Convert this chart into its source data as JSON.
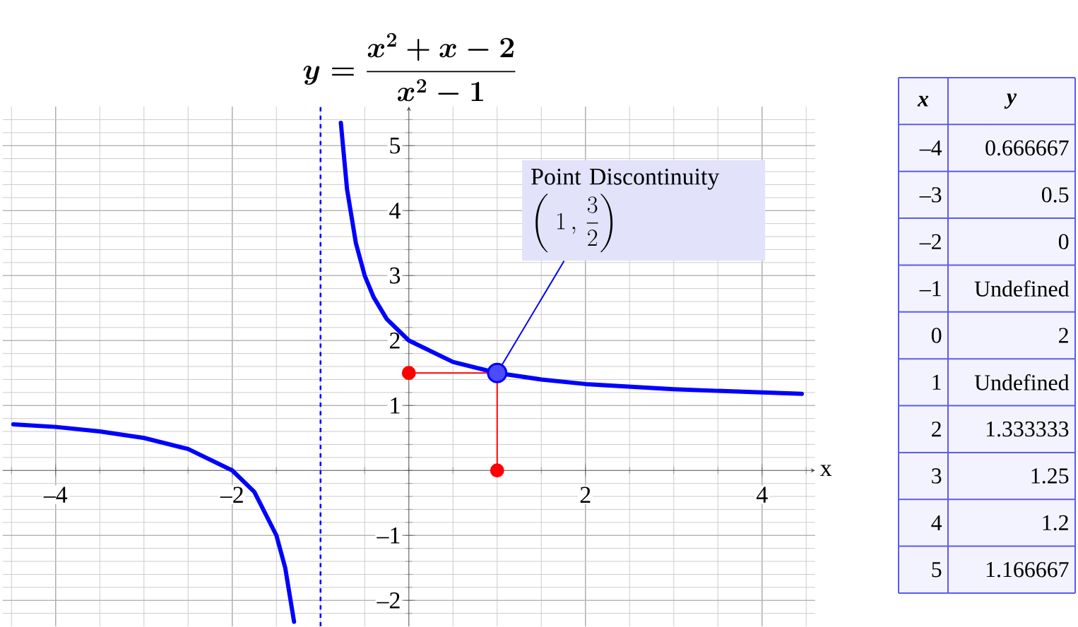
{
  "chart_data": {
    "type": "line",
    "title": "y = \\frac{x^2 + x - 2}{x^2 - 1}",
    "xlabel": "x",
    "xlim": [
      -4.6,
      4.6
    ],
    "ylim": [
      -2.4,
      5.6
    ],
    "xticks": [
      {
        "value": -4,
        "label": "–4"
      },
      {
        "value": -2,
        "label": "–2"
      },
      2,
      4
    ],
    "yticks": [
      {
        "value": -2,
        "label": "–2"
      },
      {
        "value": -1,
        "label": "–1"
      },
      1,
      2,
      3,
      4,
      5
    ],
    "grid": true,
    "series": [
      {
        "color": "#0000ff",
        "marker": "none",
        "x": [
          -4.48,
          -4,
          -3.5,
          -3,
          -2.5,
          -2,
          -1.75,
          -1.5,
          -1.4,
          -1.3
        ],
        "values": [
          0.71,
          0.67,
          0.6,
          0.5,
          0.33,
          0,
          -0.33,
          -1,
          -1.5,
          -2.33
        ]
      },
      {
        "color": "#0000ff",
        "marker": "none",
        "x": [
          -0.77,
          -0.7,
          -0.6,
          -0.5,
          -0.4,
          -0.25,
          0,
          0.5,
          1,
          1.5,
          2,
          3,
          4,
          4.45
        ],
        "values": [
          5.35,
          4.33,
          3.5,
          3,
          2.67,
          2.33,
          2,
          1.67,
          1.5,
          1.4,
          1.33,
          1.25,
          1.2,
          1.18
        ]
      },
      {
        "color": "#ff0000",
        "marker": "circle",
        "x": [
          0,
          1,
          1
        ],
        "values": [
          1.5,
          1.5,
          0
        ]
      },
      {
        "type": "scatter",
        "color": "#0000ff",
        "marker": "circle",
        "x": [
          1
        ],
        "values": [
          1.5
        ]
      }
    ],
    "ref_lines": [
      {
        "axis": "x",
        "value": -1,
        "color": "#0000ff",
        "line_style": "dashed"
      }
    ],
    "annotations": [
      "Point Discontinuity",
      {
        "text": "\\left(\\;1\\,,\\,\\frac{3}{2}\\right)",
        "x": 1,
        "y": 1.5
      },
      "x",
      "y",
      "–4",
      "0.666667",
      "–3",
      "0.5",
      "–2",
      "0",
      "–1",
      "Undefined",
      "0",
      "2",
      "1",
      "Undefined",
      "2",
      "1.333333",
      "3",
      "1.25",
      "4",
      "1.2",
      "5",
      "1.166667"
    ]
  }
}
